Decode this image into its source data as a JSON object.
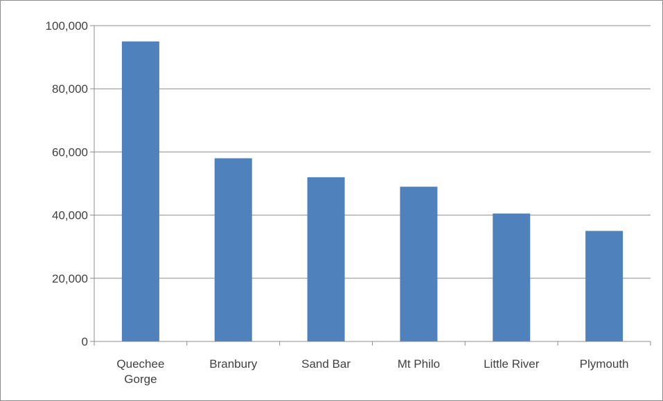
{
  "chart_data": {
    "type": "bar",
    "title": "",
    "xlabel": "",
    "ylabel": "",
    "categories": [
      [
        "Quechee",
        "Gorge"
      ],
      [
        "Branbury"
      ],
      [
        "Sand Bar"
      ],
      [
        "Mt Philo"
      ],
      [
        "Little River"
      ],
      [
        "Plymouth"
      ]
    ],
    "values": [
      95000,
      58000,
      52000,
      49000,
      40500,
      35000
    ],
    "ylim": [
      0,
      100000
    ],
    "yticks": [
      0,
      20000,
      40000,
      60000,
      80000,
      100000
    ],
    "ytick_labels": [
      "0",
      "20,000",
      "40,000",
      "60,000",
      "80,000",
      "100,000"
    ],
    "grid": true,
    "legend": "none",
    "colors": {
      "bar": "#4f81bd",
      "grid": "#8c8c8c",
      "axis": "#8c8c8c",
      "text": "#404040"
    }
  }
}
